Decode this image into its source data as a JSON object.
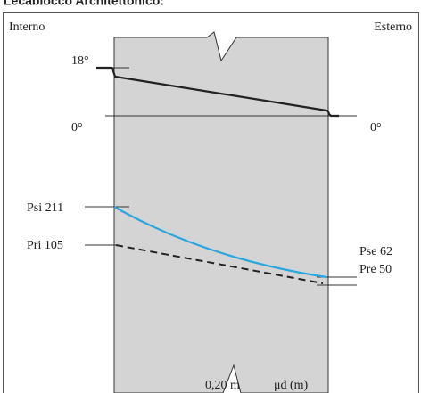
{
  "header": {
    "title": "Lecablocco Architettonico:"
  },
  "labels": {
    "inside": "Interno",
    "outside": "Esterno",
    "temp_inside": "18°",
    "zero_left": "0°",
    "zero_right": "0°",
    "psi": "Psi 211",
    "pri": "Pri 105",
    "pse": "Pse 62",
    "pre": "Pre 50",
    "thickness": "0,20 m",
    "mu_d": "μd (m)"
  }
}
